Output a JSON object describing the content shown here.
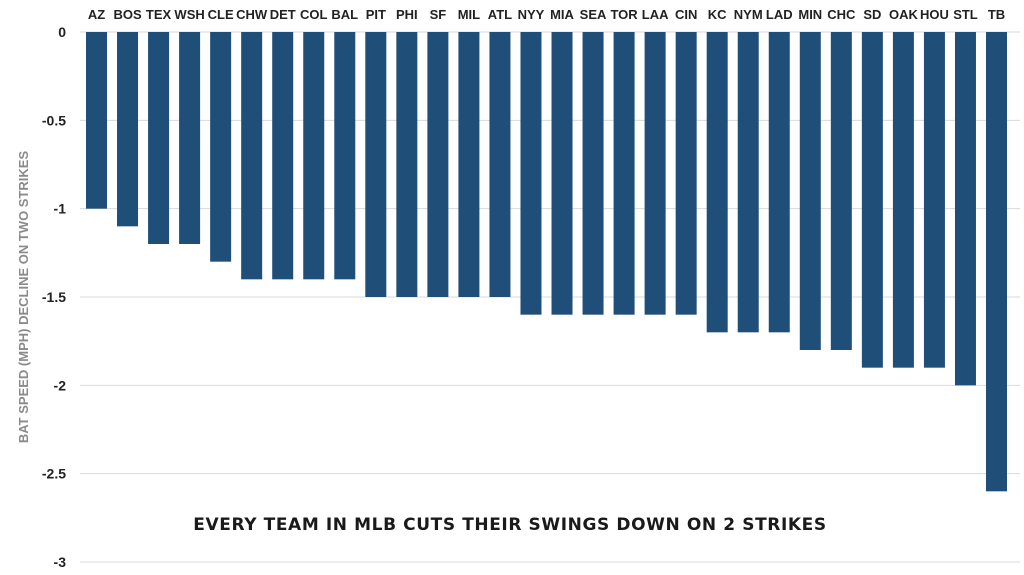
{
  "chart_data": {
    "type": "bar",
    "title": "EVERY TEAM IN MLB CUTS THEIR SWINGS DOWN ON 2 STRIKES",
    "ylabel": "BAT SPEED (MPH) DECLINE ON TWO STRIKES",
    "xlabel": "",
    "categories": [
      "AZ",
      "BOS",
      "TEX",
      "WSH",
      "CLE",
      "CHW",
      "DET",
      "COL",
      "BAL",
      "PIT",
      "PHI",
      "SF",
      "MIL",
      "ATL",
      "NYY",
      "MIA",
      "SEA",
      "TOR",
      "LAA",
      "CIN",
      "KC",
      "NYM",
      "LAD",
      "MIN",
      "CHC",
      "SD",
      "OAK",
      "HOU",
      "STL",
      "TB"
    ],
    "values": [
      -1.0,
      -1.1,
      -1.2,
      -1.2,
      -1.3,
      -1.4,
      -1.4,
      -1.4,
      -1.4,
      -1.5,
      -1.5,
      -1.5,
      -1.5,
      -1.5,
      -1.6,
      -1.6,
      -1.6,
      -1.6,
      -1.6,
      -1.6,
      -1.7,
      -1.7,
      -1.7,
      -1.8,
      -1.8,
      -1.9,
      -1.9,
      -1.9,
      -2.0,
      -2.6
    ],
    "ylim": [
      -3,
      0
    ],
    "yticks": [
      0,
      -0.5,
      -1,
      -1.5,
      -2,
      -2.5,
      -3
    ],
    "ytick_labels": [
      "0",
      "-0.5",
      "-1",
      "-1.5",
      "-2",
      "-2.5",
      "-3"
    ],
    "grid": true,
    "legend": "none",
    "bar_color": "#1f4e79"
  }
}
